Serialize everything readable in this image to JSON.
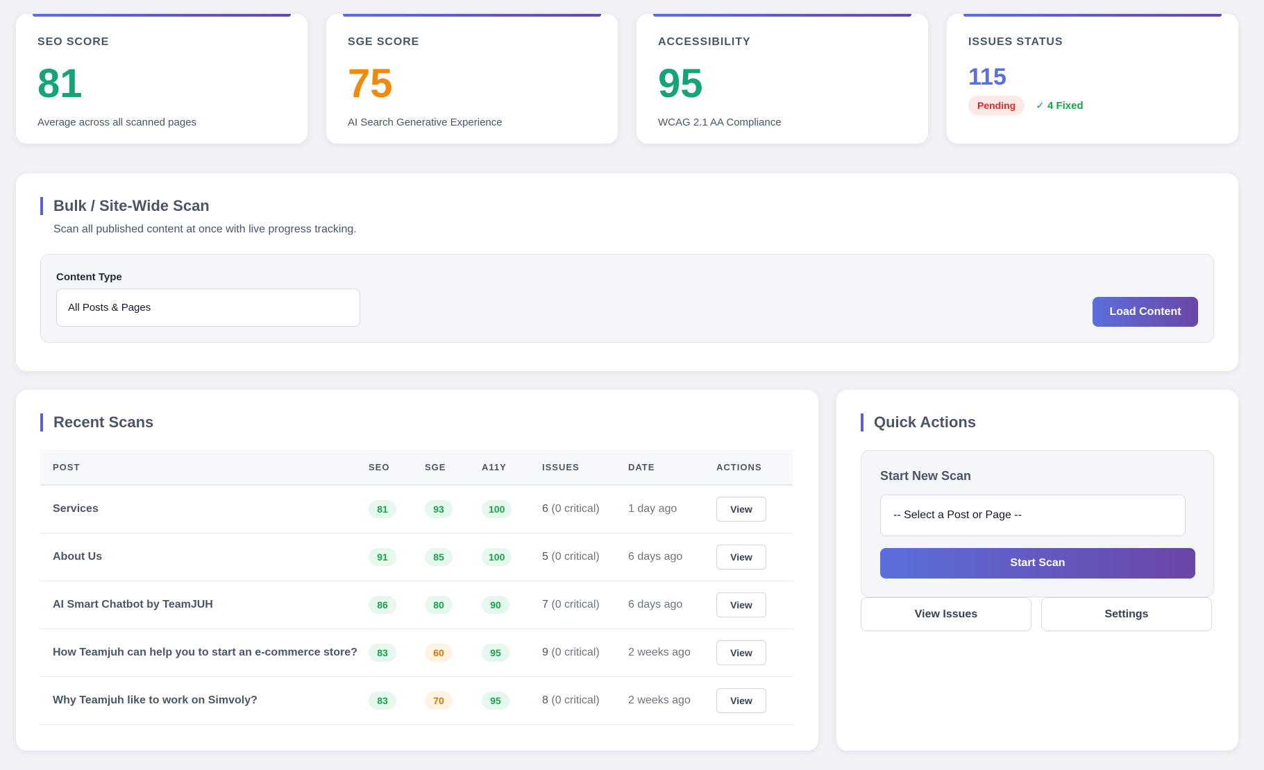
{
  "stats": [
    {
      "label": "SEO SCORE",
      "value": "81",
      "color": "#16a37a",
      "desc": "Average across all scanned pages"
    },
    {
      "label": "SGE SCORE",
      "value": "75",
      "color": "#f08a0c",
      "desc": "AI Search Generative Experience"
    },
    {
      "label": "ACCESSIBILITY",
      "value": "95",
      "color": "#16a37a",
      "desc": "WCAG 2.1 AA Compliance"
    }
  ],
  "issues": {
    "label": "ISSUES STATUS",
    "value": "115",
    "color": "#5b6fdc",
    "pending": "Pending",
    "fixed": "✓ 4 Fixed"
  },
  "bulk": {
    "title": "Bulk / Site-Wide Scan",
    "desc": "Scan all published content at once with live progress tracking.",
    "content_type_label": "Content Type",
    "content_type_value": "All Posts & Pages",
    "load_button": "Load Content"
  },
  "recent": {
    "title": "Recent Scans",
    "columns": [
      "POST",
      "SEO",
      "SGE",
      "A11Y",
      "ISSUES",
      "DATE",
      "ACTIONS"
    ],
    "view_label": "View",
    "rows": [
      {
        "post": "Services",
        "seo": "81",
        "sge": "93",
        "a11y": "100",
        "issues": "6",
        "critical": "(0 critical)",
        "date": "1 day ago"
      },
      {
        "post": "About Us",
        "seo": "91",
        "sge": "85",
        "a11y": "100",
        "issues": "5",
        "critical": "(0 critical)",
        "date": "6 days ago"
      },
      {
        "post": "AI Smart Chatbot by TeamJUH",
        "seo": "86",
        "sge": "80",
        "a11y": "90",
        "issues": "7",
        "critical": "(0 critical)",
        "date": "6 days ago"
      },
      {
        "post": "How Teamjuh can help you to start an e-commerce store?",
        "seo": "83",
        "sge": "60",
        "a11y": "95",
        "issues": "9",
        "critical": "(0 critical)",
        "date": "2 weeks ago"
      },
      {
        "post": "Why Teamjuh like to work on Simvoly?",
        "seo": "83",
        "sge": "70",
        "a11y": "95",
        "issues": "8",
        "critical": "(0 critical)",
        "date": "2 weeks ago"
      }
    ]
  },
  "quick": {
    "title": "Quick Actions",
    "box_title": "Start New Scan",
    "select_value": "-- Select a Post or Page --",
    "start_button": "Start Scan",
    "view_issues": "View Issues",
    "settings": "Settings"
  }
}
